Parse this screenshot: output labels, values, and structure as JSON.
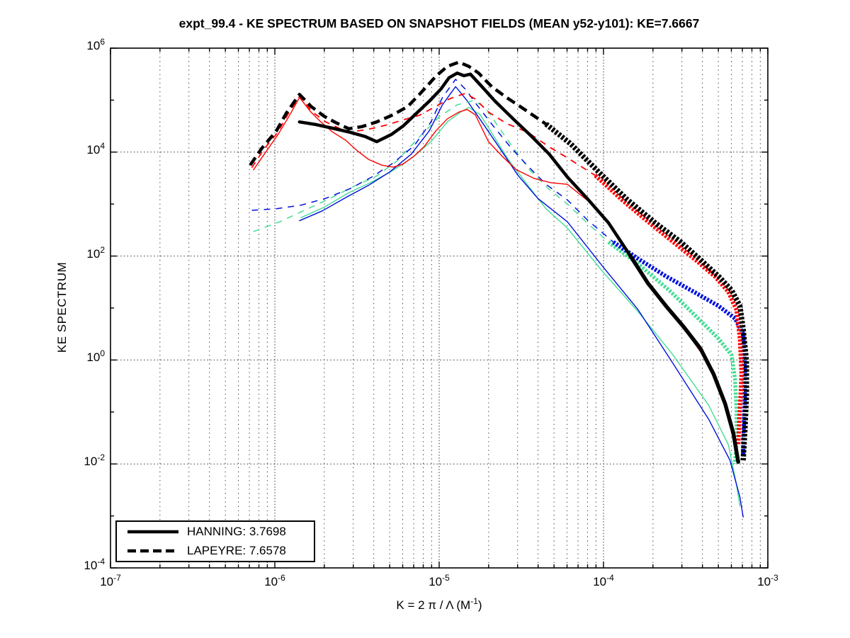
{
  "title": "expt_99.4 - KE SPECTRUM BASED ON SNAPSHOT FIELDS (MEAN y52-y101): KE=7.6667",
  "axes": {
    "ylabel": "KE SPECTRUM",
    "xlabel": {
      "text": "K = 2 π / Λ  (M",
      "sup": "-1",
      "post": ")"
    }
  },
  "legend": {
    "entries": [
      {
        "label": "HANNING: 3.7698",
        "style": "solid"
      },
      {
        "label": "LAPEYRE: 7.6578",
        "style": "dashed"
      }
    ]
  },
  "ke_values": {
    "hanning": 3.7698,
    "lapeyre": 7.6578,
    "title_total": 7.6667
  },
  "chart_data": {
    "type": "line",
    "title": "expt_99.4 - KE SPECTRUM BASED ON SNAPSHOT FIELDS (MEAN y52-y101): KE=7.6667",
    "xlabel": "K = 2 pi / Lambda (M^-1)",
    "ylabel": "KE SPECTRUM",
    "x_scale": "log10",
    "y_scale": "log10",
    "x_range_log10": [
      -7,
      -3
    ],
    "y_range_log10": [
      -4,
      6
    ],
    "x_ticks": [
      -7,
      -6,
      -5,
      -4,
      -3
    ],
    "y_ticks": [
      6,
      4,
      2,
      0,
      -2,
      -4
    ],
    "y_gridlines": [
      4,
      2,
      0,
      -2
    ],
    "grid": true,
    "legend_position": "lower-left",
    "series": [
      {
        "name": "hanning-green",
        "color": "#44dd95",
        "width": 1.4,
        "dash": null,
        "points": [
          [
            -5.84,
            2.74
          ],
          [
            -5.7,
            2.94
          ],
          [
            -5.55,
            3.22
          ],
          [
            -5.42,
            3.41
          ],
          [
            -5.29,
            3.63
          ],
          [
            -5.16,
            3.9
          ],
          [
            -5.05,
            4.2
          ],
          [
            -4.95,
            4.58
          ],
          [
            -4.87,
            4.77
          ],
          [
            -4.82,
            4.86
          ],
          [
            -4.75,
            4.72
          ],
          [
            -4.68,
            4.37
          ],
          [
            -4.58,
            3.86
          ],
          [
            -4.46,
            3.36
          ],
          [
            -4.35,
            2.91
          ],
          [
            -4.22,
            2.54
          ],
          [
            -4.01,
            1.72
          ],
          [
            -3.79,
            0.93
          ],
          [
            -3.58,
            0.11
          ],
          [
            -3.36,
            -0.87
          ],
          [
            -3.24,
            -1.63
          ],
          [
            -3.19,
            -2.41
          ],
          [
            -3.17,
            -2.81
          ]
        ]
      },
      {
        "name": "hanning-blue",
        "color": "#0011dd",
        "width": 1.4,
        "dash": null,
        "points": [
          [
            -5.85,
            2.68
          ],
          [
            -5.71,
            2.87
          ],
          [
            -5.56,
            3.14
          ],
          [
            -5.43,
            3.36
          ],
          [
            -5.3,
            3.62
          ],
          [
            -5.17,
            3.96
          ],
          [
            -5.06,
            4.41
          ],
          [
            -4.98,
            4.91
          ],
          [
            -4.9,
            5.26
          ],
          [
            -4.83,
            4.99
          ],
          [
            -4.74,
            4.58
          ],
          [
            -4.63,
            4.07
          ],
          [
            -4.52,
            3.55
          ],
          [
            -4.4,
            3.11
          ],
          [
            -4.22,
            2.66
          ],
          [
            -4.01,
            1.82
          ],
          [
            -3.79,
            0.97
          ],
          [
            -3.58,
            -0.05
          ],
          [
            -3.36,
            -1.14
          ],
          [
            -3.23,
            -1.93
          ],
          [
            -3.17,
            -2.64
          ],
          [
            -3.15,
            -3.02
          ]
        ]
      },
      {
        "name": "lapeyre-green",
        "color": "#44dd95",
        "width": 1.5,
        "dash": "9 8",
        "tail": {
          "from": -4.0,
          "width": 5.5,
          "dash": "3 2"
        },
        "points": [
          [
            -6.13,
            2.47
          ],
          [
            -5.97,
            2.66
          ],
          [
            -5.82,
            2.88
          ],
          [
            -5.67,
            3.1
          ],
          [
            -5.52,
            3.34
          ],
          [
            -5.39,
            3.52
          ],
          [
            -5.26,
            3.82
          ],
          [
            -5.13,
            4.26
          ],
          [
            -5.0,
            4.68
          ],
          [
            -4.89,
            4.91
          ],
          [
            -4.79,
            4.99
          ],
          [
            -4.72,
            4.86
          ],
          [
            -4.66,
            4.58
          ],
          [
            -4.56,
            4.13
          ],
          [
            -4.45,
            3.66
          ],
          [
            -4.33,
            3.28
          ],
          [
            -4.22,
            3.0
          ],
          [
            -4.1,
            2.64
          ],
          [
            -3.97,
            2.27
          ],
          [
            -3.79,
            1.85
          ],
          [
            -3.6,
            1.34
          ],
          [
            -3.43,
            0.82
          ],
          [
            -3.3,
            0.41
          ],
          [
            -3.22,
            0.09
          ],
          [
            -3.2,
            -0.36
          ],
          [
            -3.19,
            -0.98
          ],
          [
            -3.19,
            -1.59
          ],
          [
            -3.2,
            -2.0
          ]
        ]
      },
      {
        "name": "lapeyre-blue",
        "color": "#0011dd",
        "width": 1.5,
        "dash": "9 8",
        "tail": {
          "from": -4.0,
          "width": 6,
          "dash": "3 2"
        },
        "points": [
          [
            -6.14,
            2.88
          ],
          [
            -5.99,
            2.91
          ],
          [
            -5.84,
            2.98
          ],
          [
            -5.69,
            3.11
          ],
          [
            -5.54,
            3.3
          ],
          [
            -5.41,
            3.52
          ],
          [
            -5.28,
            3.79
          ],
          [
            -5.15,
            4.13
          ],
          [
            -5.05,
            4.58
          ],
          [
            -4.98,
            5.05
          ],
          [
            -4.9,
            5.4
          ],
          [
            -4.84,
            5.21
          ],
          [
            -4.78,
            4.95
          ],
          [
            -4.68,
            4.54
          ],
          [
            -4.57,
            4.11
          ],
          [
            -4.46,
            3.73
          ],
          [
            -4.35,
            3.38
          ],
          [
            -4.22,
            3.08
          ],
          [
            -4.1,
            2.7
          ],
          [
            -3.94,
            2.27
          ],
          [
            -3.79,
            1.95
          ],
          [
            -3.62,
            1.61
          ],
          [
            -3.45,
            1.31
          ],
          [
            -3.3,
            1.04
          ],
          [
            -3.2,
            0.8
          ],
          [
            -3.15,
            0.5
          ],
          [
            -3.14,
            -0.16
          ],
          [
            -3.14,
            -0.84
          ],
          [
            -3.15,
            -1.52
          ],
          [
            -3.15,
            -1.82
          ]
        ]
      },
      {
        "name": "hanning-red",
        "color": "#ff0000",
        "width": 1.4,
        "dash": null,
        "points": [
          [
            -6.13,
            3.66
          ],
          [
            -6.06,
            3.98
          ],
          [
            -5.98,
            4.34
          ],
          [
            -5.91,
            4.71
          ],
          [
            -5.85,
            5.05
          ],
          [
            -5.78,
            4.77
          ],
          [
            -5.72,
            4.58
          ],
          [
            -5.65,
            4.39
          ],
          [
            -5.57,
            4.23
          ],
          [
            -5.5,
            4.03
          ],
          [
            -5.43,
            3.86
          ],
          [
            -5.35,
            3.75
          ],
          [
            -5.28,
            3.71
          ],
          [
            -5.22,
            3.77
          ],
          [
            -5.15,
            3.93
          ],
          [
            -5.09,
            4.11
          ],
          [
            -5.02,
            4.41
          ],
          [
            -4.95,
            4.64
          ],
          [
            -4.88,
            4.77
          ],
          [
            -4.83,
            4.82
          ],
          [
            -4.78,
            4.72
          ],
          [
            -4.7,
            4.2
          ],
          [
            -4.61,
            3.9
          ],
          [
            -4.53,
            3.66
          ],
          [
            -4.42,
            3.49
          ],
          [
            -4.32,
            3.41
          ],
          [
            -4.22,
            3.38
          ],
          [
            -4.07,
            3.0
          ],
          [
            -3.94,
            2.53
          ],
          [
            -3.82,
            1.91
          ],
          [
            -3.72,
            1.41
          ],
          [
            -3.61,
            0.97
          ],
          [
            -3.5,
            0.56
          ],
          [
            -3.41,
            0.16
          ],
          [
            -3.32,
            -0.34
          ],
          [
            -3.25,
            -0.91
          ],
          [
            -3.21,
            -1.48
          ],
          [
            -3.19,
            -1.93
          ]
        ]
      },
      {
        "name": "lapeyre-red",
        "color": "#ff0000",
        "width": 1.8,
        "dash": "9 8",
        "tail": {
          "from": -4.05,
          "width": 6,
          "dash": "3 2"
        },
        "points": [
          [
            -6.14,
            3.7
          ],
          [
            -6.07,
            4.04
          ],
          [
            -5.98,
            4.39
          ],
          [
            -5.92,
            4.73
          ],
          [
            -5.85,
            5.07
          ],
          [
            -5.77,
            4.77
          ],
          [
            -5.69,
            4.58
          ],
          [
            -5.61,
            4.46
          ],
          [
            -5.56,
            4.38
          ],
          [
            -5.47,
            4.42
          ],
          [
            -5.4,
            4.46
          ],
          [
            -5.31,
            4.53
          ],
          [
            -5.22,
            4.62
          ],
          [
            -5.12,
            4.71
          ],
          [
            -5.02,
            4.88
          ],
          [
            -4.94,
            5.02
          ],
          [
            -4.87,
            5.1
          ],
          [
            -4.84,
            5.13
          ],
          [
            -4.78,
            5.02
          ],
          [
            -4.7,
            4.77
          ],
          [
            -4.59,
            4.55
          ],
          [
            -4.46,
            4.38
          ],
          [
            -4.33,
            4.1
          ],
          [
            -4.22,
            3.89
          ],
          [
            -4.05,
            3.55
          ],
          [
            -3.88,
            3.06
          ],
          [
            -3.71,
            2.61
          ],
          [
            -3.56,
            2.23
          ],
          [
            -3.43,
            1.9
          ],
          [
            -3.32,
            1.6
          ],
          [
            -3.24,
            1.31
          ],
          [
            -3.19,
            0.96
          ],
          [
            -3.17,
            0.41
          ],
          [
            -3.16,
            -0.27
          ],
          [
            -3.17,
            -0.95
          ],
          [
            -3.18,
            -1.63
          ]
        ]
      },
      {
        "name": "hanning-black",
        "color": "#000000",
        "width": 4.5,
        "dash": null,
        "tail": {
          "from": -3.95,
          "width": 5.5,
          "dash": null
        },
        "points": [
          [
            -5.85,
            4.58
          ],
          [
            -5.75,
            4.53
          ],
          [
            -5.65,
            4.46
          ],
          [
            -5.54,
            4.38
          ],
          [
            -5.45,
            4.3
          ],
          [
            -5.38,
            4.2
          ],
          [
            -5.29,
            4.34
          ],
          [
            -5.22,
            4.5
          ],
          [
            -5.13,
            4.77
          ],
          [
            -5.06,
            4.98
          ],
          [
            -4.99,
            5.21
          ],
          [
            -4.94,
            5.43
          ],
          [
            -4.89,
            5.52
          ],
          [
            -4.85,
            5.47
          ],
          [
            -4.81,
            5.5
          ],
          [
            -4.74,
            5.26
          ],
          [
            -4.66,
            4.98
          ],
          [
            -4.55,
            4.64
          ],
          [
            -4.44,
            4.31
          ],
          [
            -4.33,
            3.96
          ],
          [
            -4.22,
            3.52
          ],
          [
            -4.1,
            3.11
          ],
          [
            -3.97,
            2.64
          ],
          [
            -3.84,
            2.02
          ],
          [
            -3.73,
            1.48
          ],
          [
            -3.62,
            1.04
          ],
          [
            -3.51,
            0.63
          ],
          [
            -3.41,
            0.22
          ],
          [
            -3.33,
            -0.27
          ],
          [
            -3.26,
            -0.84
          ],
          [
            -3.21,
            -1.41
          ],
          [
            -3.18,
            -1.96
          ]
        ]
      },
      {
        "name": "lapeyre-black",
        "color": "#000000",
        "width": 4.5,
        "dash": "13 7",
        "tail": {
          "from": -4.35,
          "width": 7.5,
          "dash": "3.5 2.2"
        },
        "points": [
          [
            -6.15,
            3.75
          ],
          [
            -6.08,
            4.07
          ],
          [
            -5.99,
            4.41
          ],
          [
            -5.93,
            4.75
          ],
          [
            -5.85,
            5.11
          ],
          [
            -5.78,
            4.88
          ],
          [
            -5.7,
            4.69
          ],
          [
            -5.63,
            4.57
          ],
          [
            -5.55,
            4.45
          ],
          [
            -5.47,
            4.49
          ],
          [
            -5.38,
            4.58
          ],
          [
            -5.28,
            4.72
          ],
          [
            -5.19,
            4.88
          ],
          [
            -5.12,
            5.11
          ],
          [
            -5.02,
            5.46
          ],
          [
            -4.95,
            5.65
          ],
          [
            -4.88,
            5.73
          ],
          [
            -4.82,
            5.65
          ],
          [
            -4.76,
            5.52
          ],
          [
            -4.68,
            5.26
          ],
          [
            -4.59,
            5.05
          ],
          [
            -4.48,
            4.82
          ],
          [
            -4.35,
            4.54
          ],
          [
            -4.2,
            4.16
          ],
          [
            -4.03,
            3.62
          ],
          [
            -3.86,
            3.1
          ],
          [
            -3.69,
            2.65
          ],
          [
            -3.53,
            2.27
          ],
          [
            -3.41,
            1.93
          ],
          [
            -3.3,
            1.61
          ],
          [
            -3.22,
            1.34
          ],
          [
            -3.17,
            1.04
          ],
          [
            -3.15,
            0.59
          ],
          [
            -3.13,
            -0.02
          ],
          [
            -3.13,
            -0.7
          ],
          [
            -3.14,
            -1.38
          ],
          [
            -3.15,
            -1.93
          ]
        ]
      }
    ]
  }
}
